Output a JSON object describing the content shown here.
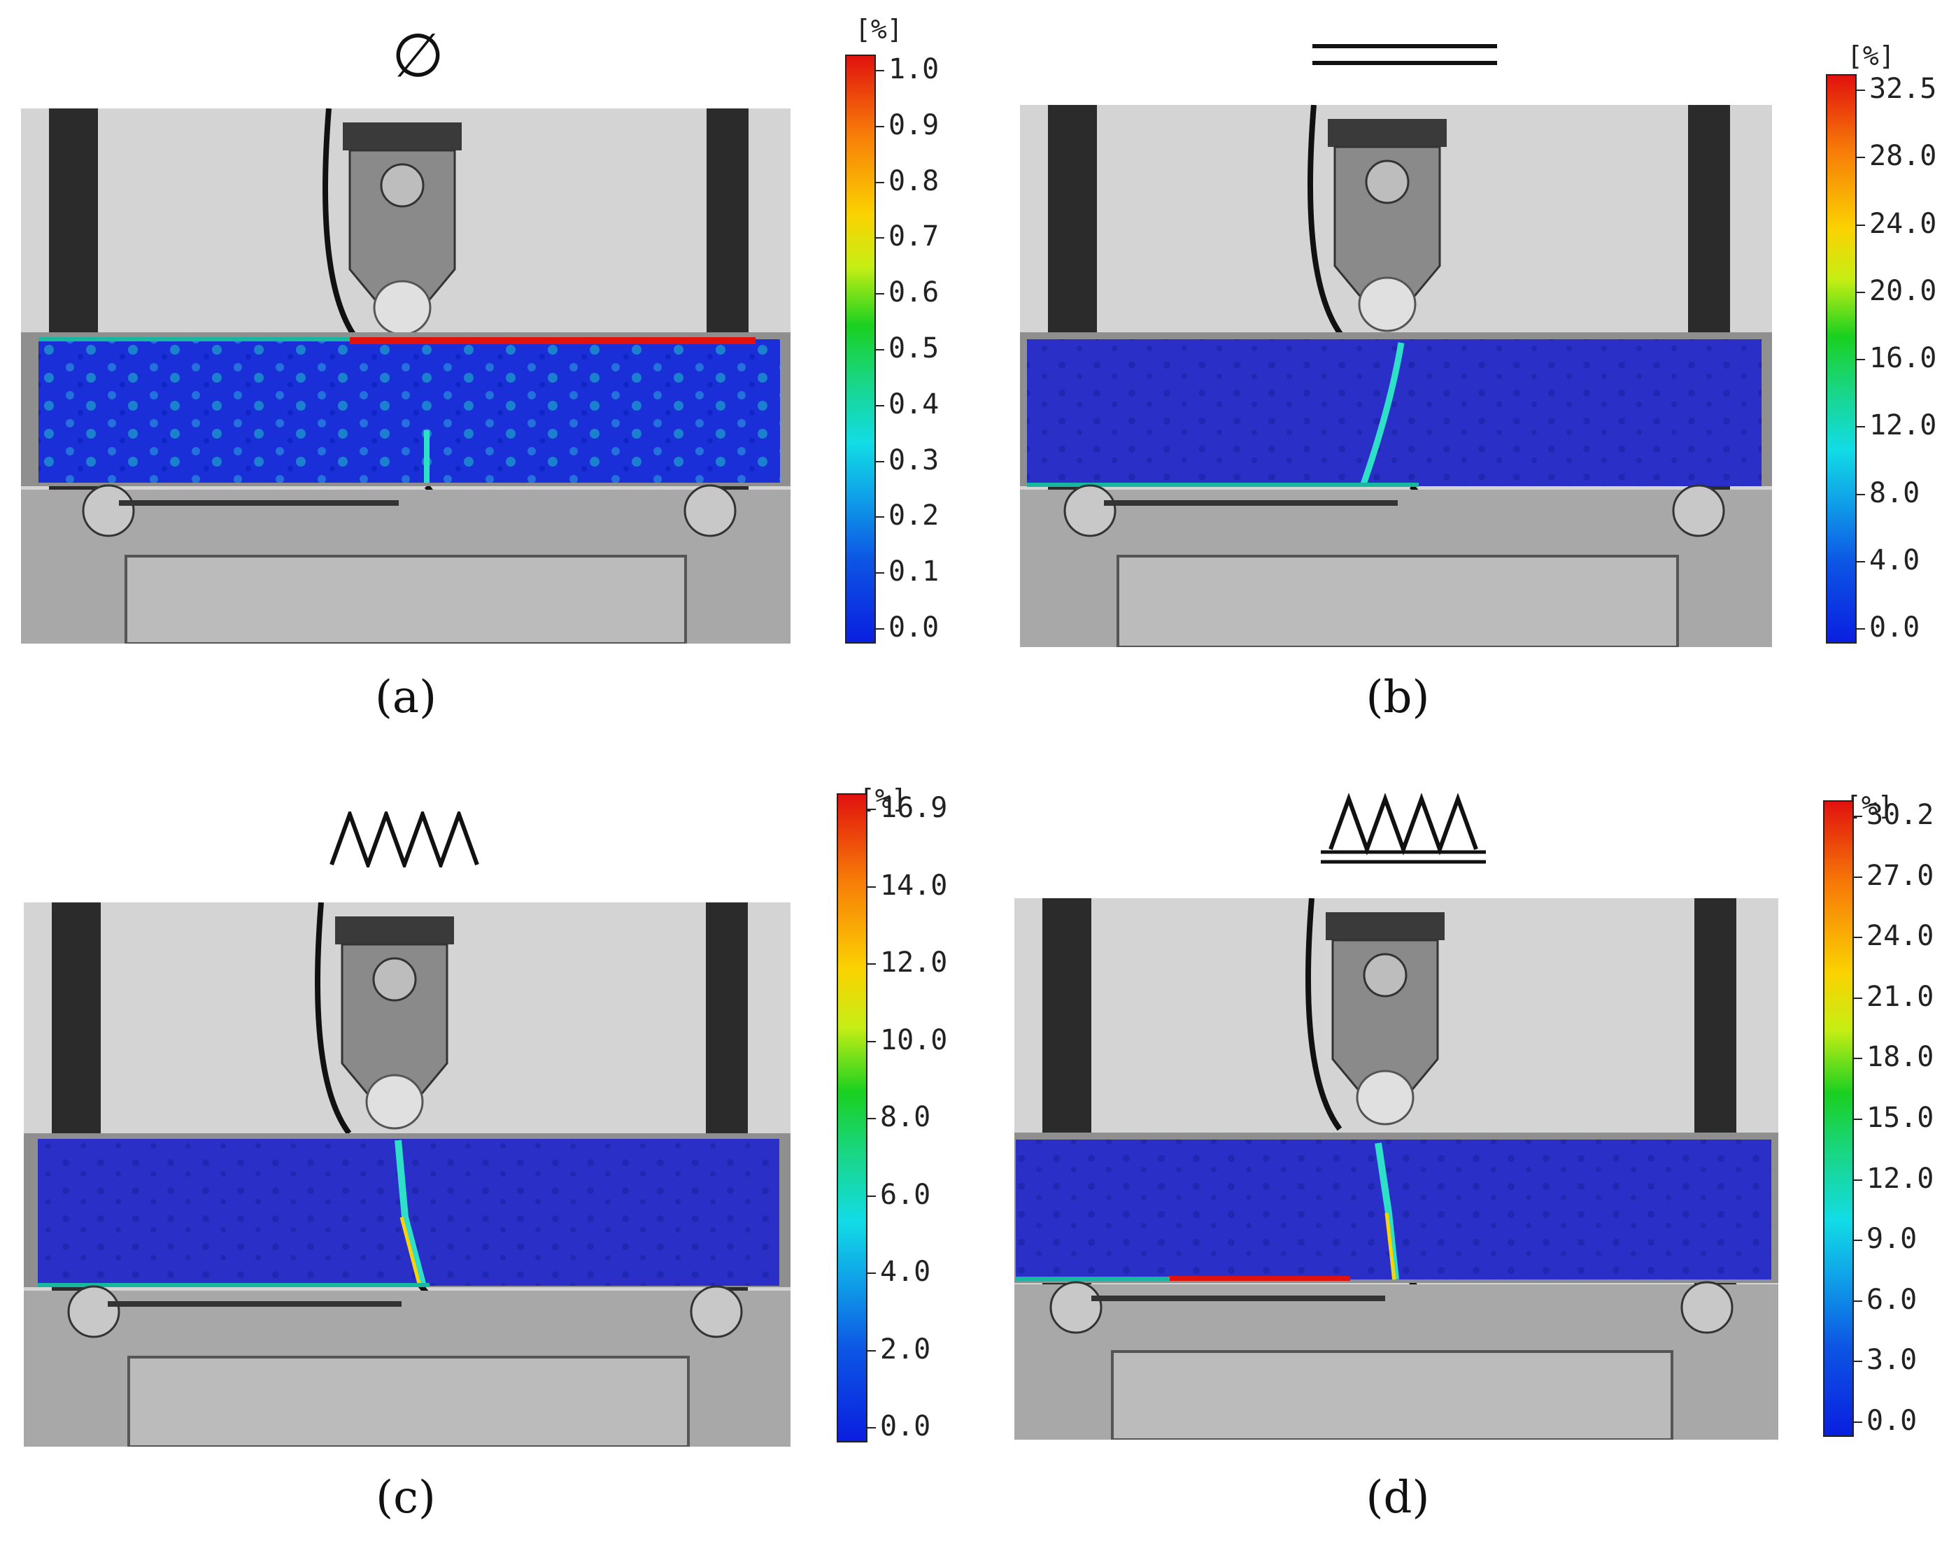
{
  "panels": [
    {
      "id": "a",
      "label": "(a)",
      "symbol": "empty-set",
      "colorbar": {
        "unit": "[%]",
        "ticks": [
          "1.0",
          "0.9",
          "0.8",
          "0.7",
          "0.6",
          "0.5",
          "0.4",
          "0.3",
          "0.2",
          "0.1",
          "0.0"
        ]
      }
    },
    {
      "id": "b",
      "label": "(b)",
      "symbol": "double-line",
      "colorbar": {
        "unit": "[%]",
        "ticks": [
          "32.5",
          "28.0",
          "24.0",
          "20.0",
          "16.0",
          "12.0",
          "8.0",
          "4.0",
          "0.0"
        ]
      }
    },
    {
      "id": "c",
      "label": "(c)",
      "symbol": "zigzag",
      "colorbar": {
        "unit": "[%]",
        "ticks": [
          "16.9",
          "14.0",
          "12.0",
          "10.0",
          "8.0",
          "6.0",
          "4.0",
          "2.0",
          "0.0"
        ]
      }
    },
    {
      "id": "d",
      "label": "(d)",
      "symbol": "zigzag-with-double-line",
      "colorbar": {
        "unit": "[%]",
        "ticks": [
          "30.2",
          "27.0",
          "24.0",
          "21.0",
          "18.0",
          "15.0",
          "12.0",
          "9.0",
          "6.0",
          "3.0",
          "0.0"
        ]
      }
    }
  ],
  "symbols": {
    "a": "∅"
  },
  "colors": {
    "strain_low": "#1a2fd8",
    "strain_high": "#e1120e",
    "crack": "#2ee0c8"
  }
}
